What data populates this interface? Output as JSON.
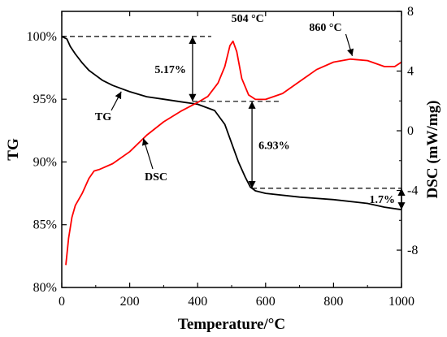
{
  "chart_data": {
    "type": "line",
    "xlabel": "Temperature/°C",
    "ylabel_left": "TG",
    "ylabel_right": "DSC (mW/mg)",
    "xlim": [
      0,
      1000
    ],
    "ylim_left": [
      80,
      102
    ],
    "ylim_right": [
      -10.5,
      8
    ],
    "x_ticks": [
      0,
      200,
      400,
      600,
      800,
      1000
    ],
    "y_left_ticks": [
      80,
      85,
      90,
      95,
      100
    ],
    "y_left_tick_labels": [
      "80%",
      "85%",
      "90%",
      "95%",
      "100%"
    ],
    "y_right_ticks": [
      -8,
      -4,
      0,
      4,
      8
    ],
    "grid": false,
    "legend": "none",
    "series": [
      {
        "name": "TG",
        "axis": "left",
        "color": "#000000",
        "x": [
          0,
          15,
          25,
          40,
          60,
          80,
          100,
          120,
          150,
          180,
          200,
          250,
          300,
          350,
          400,
          450,
          480,
          500,
          520,
          540,
          555,
          570,
          600,
          700,
          800,
          900,
          950,
          1000
        ],
        "y": [
          100,
          99.8,
          99.2,
          98.6,
          97.9,
          97.3,
          96.9,
          96.5,
          96.1,
          95.8,
          95.6,
          95.2,
          95.0,
          94.8,
          94.6,
          94.1,
          93.0,
          91.5,
          90.0,
          88.8,
          88.0,
          87.7,
          87.5,
          87.2,
          87.0,
          86.7,
          86.4,
          86.2
        ]
      },
      {
        "name": "DSC",
        "axis": "right",
        "color": "#ff0000",
        "x": [
          12,
          20,
          30,
          40,
          60,
          80,
          95,
          110,
          150,
          200,
          250,
          300,
          350,
          400,
          430,
          460,
          480,
          495,
          504,
          515,
          530,
          550,
          570,
          600,
          650,
          700,
          750,
          800,
          850,
          900,
          950,
          980,
          1000
        ],
        "y": [
          -9.0,
          -7.2,
          -5.8,
          -5.0,
          -4.2,
          -3.2,
          -2.7,
          -2.6,
          -2.2,
          -1.4,
          -0.3,
          0.6,
          1.3,
          1.9,
          2.3,
          3.2,
          4.3,
          5.7,
          6.0,
          5.3,
          3.5,
          2.4,
          2.1,
          2.1,
          2.5,
          3.3,
          4.1,
          4.6,
          4.8,
          4.7,
          4.3,
          4.3,
          4.6
        ]
      }
    ],
    "annotations": [
      {
        "text": "504 °C",
        "x": 504,
        "y": 6.0,
        "axis": "right"
      },
      {
        "text": "860 °C",
        "x": 860,
        "y": 4.8,
        "axis": "right"
      },
      {
        "text": "5.17%",
        "from": 100,
        "to": 94.83,
        "at_x": 385,
        "axis": "left"
      },
      {
        "text": "6.93%",
        "from": 94.83,
        "to": 87.9,
        "at_x": 560,
        "axis": "left"
      },
      {
        "text": "1.7%",
        "from": 87.9,
        "to": 86.2,
        "at_x": 1000,
        "axis": "left"
      },
      {
        "text": "TG",
        "target_series": "TG"
      },
      {
        "text": "DSC",
        "target_series": "DSC"
      }
    ]
  }
}
